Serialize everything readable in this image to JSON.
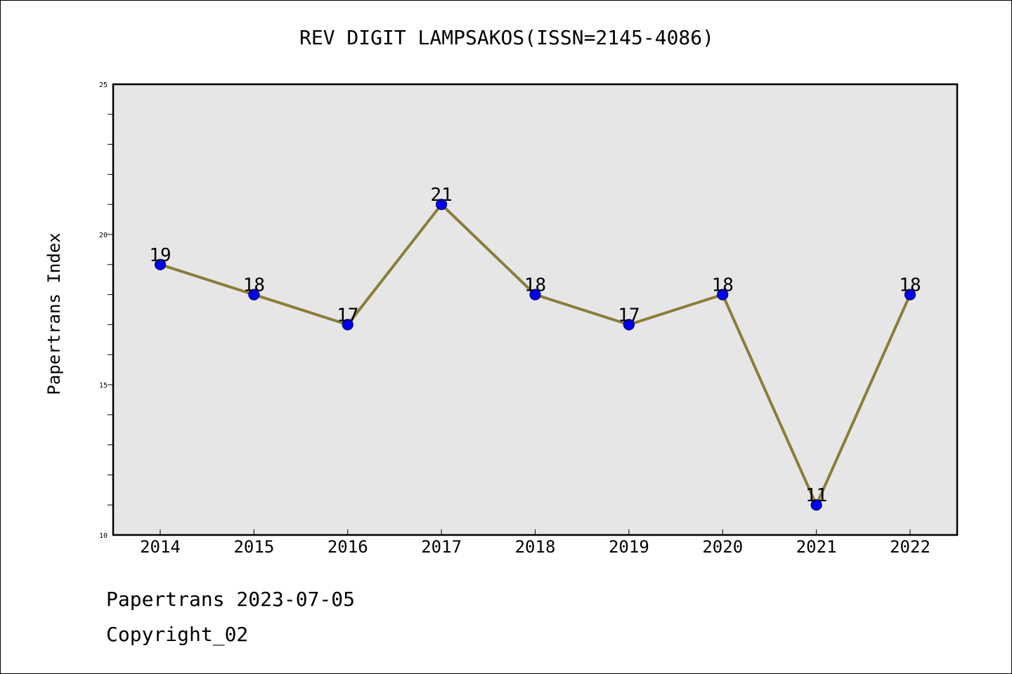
{
  "chart_data": {
    "type": "line",
    "title": "REV DIGIT LAMPSAKOS(ISSN=2145-4086)",
    "xlabel": "",
    "ylabel": "Papertrans Index",
    "categories": [
      "2014",
      "2015",
      "2016",
      "2017",
      "2018",
      "2019",
      "2020",
      "2021",
      "2022"
    ],
    "series": [
      {
        "values": [
          19,
          18,
          17,
          21,
          18,
          17,
          18,
          11,
          18
        ],
        "data_labels": [
          "19",
          "18",
          "17",
          "21",
          "18",
          "17",
          "18",
          "11",
          "18"
        ]
      }
    ],
    "ylim": [
      10,
      25
    ],
    "y_ticks": [
      10,
      15,
      20,
      25
    ],
    "y_tick_labels": [
      "10",
      "15",
      "20",
      "25"
    ],
    "y_minor_step": 1,
    "grid": false,
    "line_color": "#8b7d3a",
    "marker_color": "#0000ee",
    "plot_background": "#e6e6e6"
  },
  "footer": {
    "source": "Papertrans 2023-07-05",
    "copyright": "Copyright_02"
  }
}
